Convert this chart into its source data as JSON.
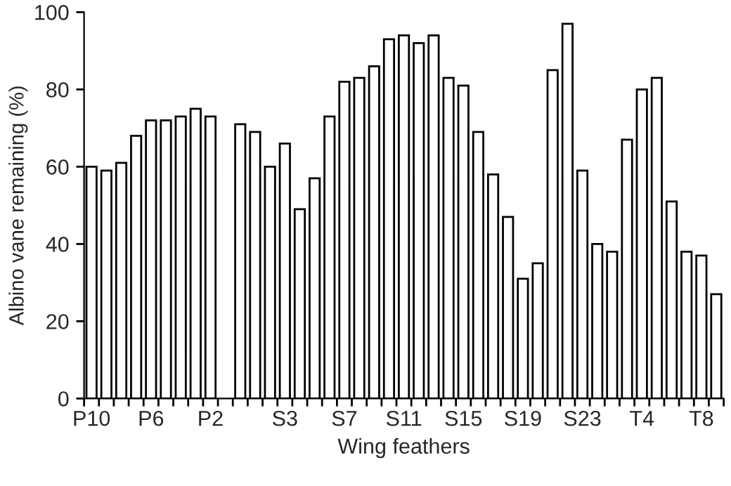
{
  "chart_data": {
    "type": "bar",
    "xlabel": "Wing feathers",
    "ylabel": "Albino vane remaining (%)",
    "categories": [
      "P10",
      null,
      null,
      null,
      "P6",
      null,
      null,
      null,
      "P2",
      null,
      null,
      null,
      null,
      "S3",
      null,
      null,
      null,
      "S7",
      null,
      null,
      null,
      "S11",
      null,
      null,
      null,
      "S15",
      null,
      null,
      null,
      "S19",
      null,
      null,
      null,
      "S23",
      null,
      null,
      null,
      "T4",
      null,
      null,
      null,
      "T8",
      null
    ],
    "values": [
      60,
      59,
      61,
      68,
      72,
      72,
      73,
      75,
      73,
      null,
      71,
      69,
      60,
      66,
      49,
      57,
      73,
      82,
      83,
      86,
      93,
      94,
      92,
      94,
      83,
      81,
      69,
      58,
      47,
      31,
      35,
      85,
      97,
      59,
      40,
      38,
      67,
      80,
      83,
      51,
      38,
      37,
      27
    ],
    "color": "#ffffff",
    "ylim": [
      0,
      100
    ],
    "yticks": [
      0,
      20,
      40,
      60,
      80,
      100
    ],
    "grid": false
  }
}
